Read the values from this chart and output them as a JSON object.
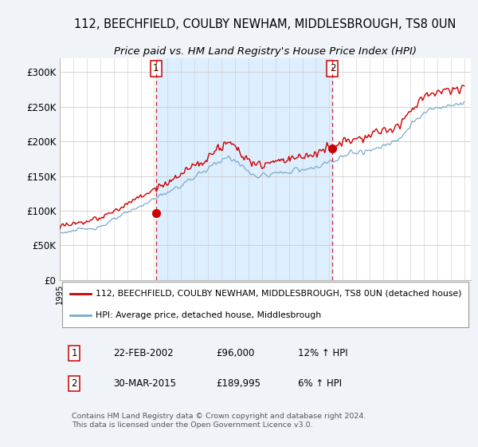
{
  "title": "112, BEECHFIELD, COULBY NEWHAM, MIDDLESBROUGH, TS8 0UN",
  "subtitle": "Price paid vs. HM Land Registry's House Price Index (HPI)",
  "red_label": "112, BEECHFIELD, COULBY NEWHAM, MIDDLESBROUGH, TS8 0UN (detached house)",
  "blue_label": "HPI: Average price, detached house, Middlesbrough",
  "transaction1_date": "22-FEB-2002",
  "transaction1_price": "£96,000",
  "transaction1_hpi": "12% ↑ HPI",
  "transaction1_year": 2002.13,
  "transaction1_value": 96000,
  "transaction2_date": "30-MAR-2015",
  "transaction2_price": "£189,995",
  "transaction2_hpi": "6% ↑ HPI",
  "transaction2_year": 2015.24,
  "transaction2_value": 189995,
  "footer": "Contains HM Land Registry data © Crown copyright and database right 2024.\nThis data is licensed under the Open Government Licence v3.0.",
  "ylim_min": 0,
  "ylim_max": 320000,
  "yticks": [
    0,
    50000,
    100000,
    150000,
    200000,
    250000,
    300000
  ],
  "ytick_labels": [
    "£0",
    "£50K",
    "£100K",
    "£150K",
    "£200K",
    "£250K",
    "£300K"
  ],
  "background_color": "#f0f4f8",
  "plot_bg_color": "#ffffff",
  "red_color": "#cc0000",
  "blue_color": "#7aaacc",
  "fill_color": "#ddeeff",
  "grid_color": "#cccccc",
  "dashed_line_color": "#cc0000",
  "title_fontsize": 10.5,
  "subtitle_fontsize": 9.5
}
